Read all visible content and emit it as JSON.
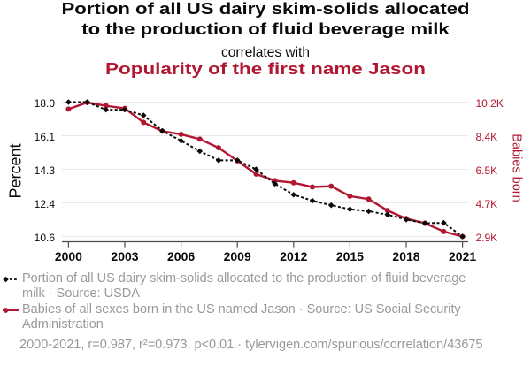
{
  "page": {
    "background": "#ffffff",
    "accent_red": "#b21731",
    "text_black": "#0a0a0a",
    "muted_gray": "#999999"
  },
  "header": {
    "title_lines": [
      "Portion of all US dairy skim-solids allocated",
      "to the production of fluid beverage milk"
    ],
    "connector": "correlates with",
    "subtitle": "Popularity of the first name Jason"
  },
  "chart_data": {
    "type": "line",
    "x": [
      2000,
      2001,
      2002,
      2003,
      2004,
      2005,
      2006,
      2007,
      2008,
      2009,
      2010,
      2011,
      2012,
      2013,
      2014,
      2015,
      2016,
      2017,
      2018,
      2019,
      2020,
      2021
    ],
    "x_tick_labels": [
      "2000",
      "2003",
      "2006",
      "2009",
      "2012",
      "2015",
      "2018",
      "2021"
    ],
    "x_tick_values": [
      2000,
      2003,
      2006,
      2009,
      2012,
      2015,
      2018,
      2021
    ],
    "grid": true,
    "series": [
      {
        "name": "Portion of all US dairy skim-solids allocated to the production of fluid beverage milk",
        "axis": "left",
        "color": "#0a0a0a",
        "line_style": "dashed",
        "marker": "diamond",
        "values": [
          18.0,
          18.0,
          17.58,
          17.58,
          17.27,
          16.42,
          15.87,
          15.3,
          14.79,
          14.79,
          14.3,
          13.5,
          12.9,
          12.57,
          12.32,
          12.1,
          11.99,
          11.8,
          11.53,
          11.33,
          11.35,
          10.6
        ]
      },
      {
        "name": "Babies of all sexes born in the US named Jason",
        "axis": "right",
        "color": "#b21731",
        "line_style": "solid",
        "marker": "circle",
        "values": [
          9820,
          10180,
          10000,
          9860,
          9100,
          8620,
          8450,
          8190,
          7720,
          7010,
          6290,
          5930,
          5820,
          5590,
          5630,
          5090,
          4930,
          4310,
          3870,
          3620,
          3170,
          2900
        ]
      }
    ],
    "left_axis": {
      "label": "Percent",
      "color": "#0a0a0a",
      "tick_labels": [
        "18.0",
        "16.1",
        "14.3",
        "12.4",
        "10.6"
      ],
      "tick_values": [
        18.0,
        16.15,
        14.3,
        12.45,
        10.6
      ],
      "range": [
        10.6,
        18.0
      ]
    },
    "right_axis": {
      "label": "Babies born",
      "color": "#b21731",
      "tick_labels": [
        "10.2K",
        "8.4K",
        "6.5K",
        "4.7K",
        "2.9K"
      ],
      "tick_values": [
        10200,
        8375,
        6550,
        4725,
        2900
      ],
      "range": [
        2900,
        10200
      ]
    }
  },
  "legend": {
    "items": [
      {
        "marker": "black-diamond-dashed",
        "lines": [
          "Portion of all US dairy skim-solids allocated to the production of fluid beverage",
          "milk · Source: USDA"
        ]
      },
      {
        "marker": "red-circle-solid",
        "lines": [
          "Babies of all sexes born in the US named Jason · Source: US Social Security",
          "Administration"
        ]
      }
    ]
  },
  "footer": {
    "text": "2000-2021, r=0.987, r²=0.973, p<0.01 · tylervigen.com/spurious/correlation/43675"
  }
}
